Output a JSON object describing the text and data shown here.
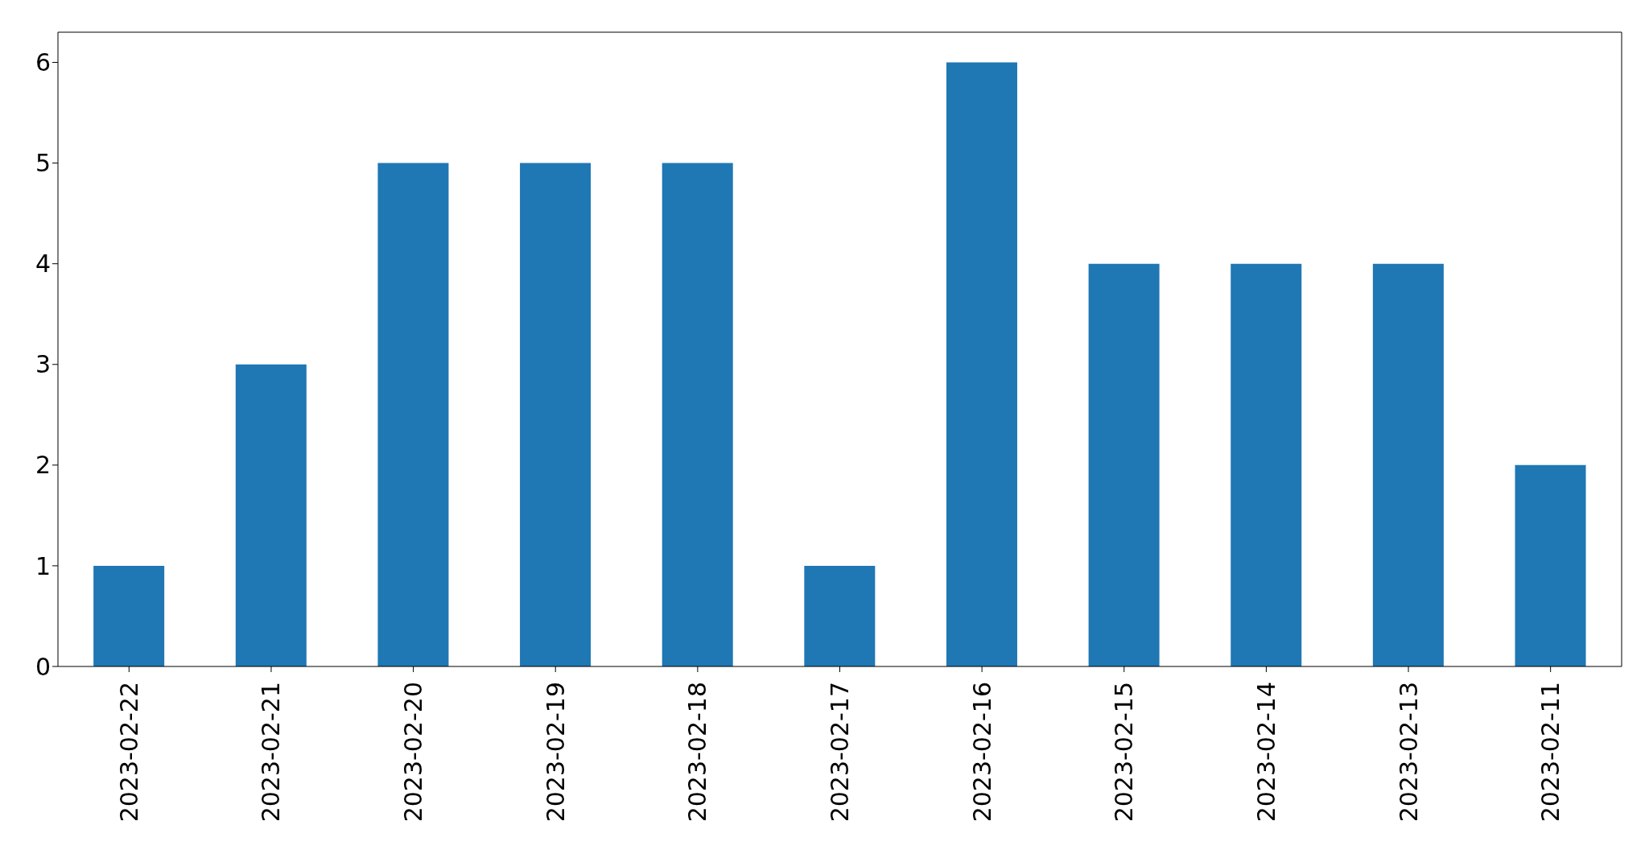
{
  "chart_data": {
    "type": "bar",
    "categories": [
      "2023-02-22",
      "2023-02-21",
      "2023-02-20",
      "2023-02-19",
      "2023-02-18",
      "2023-02-17",
      "2023-02-16",
      "2023-02-15",
      "2023-02-14",
      "2023-02-13",
      "2023-02-11"
    ],
    "values": [
      1,
      3,
      5,
      5,
      5,
      1,
      6,
      4,
      4,
      4,
      2
    ],
    "color": "#1f77b4",
    "ylim": [
      0,
      6.3
    ],
    "yticks": [
      0,
      1,
      2,
      3,
      4,
      5,
      6
    ],
    "grid": false,
    "legend": false
  }
}
